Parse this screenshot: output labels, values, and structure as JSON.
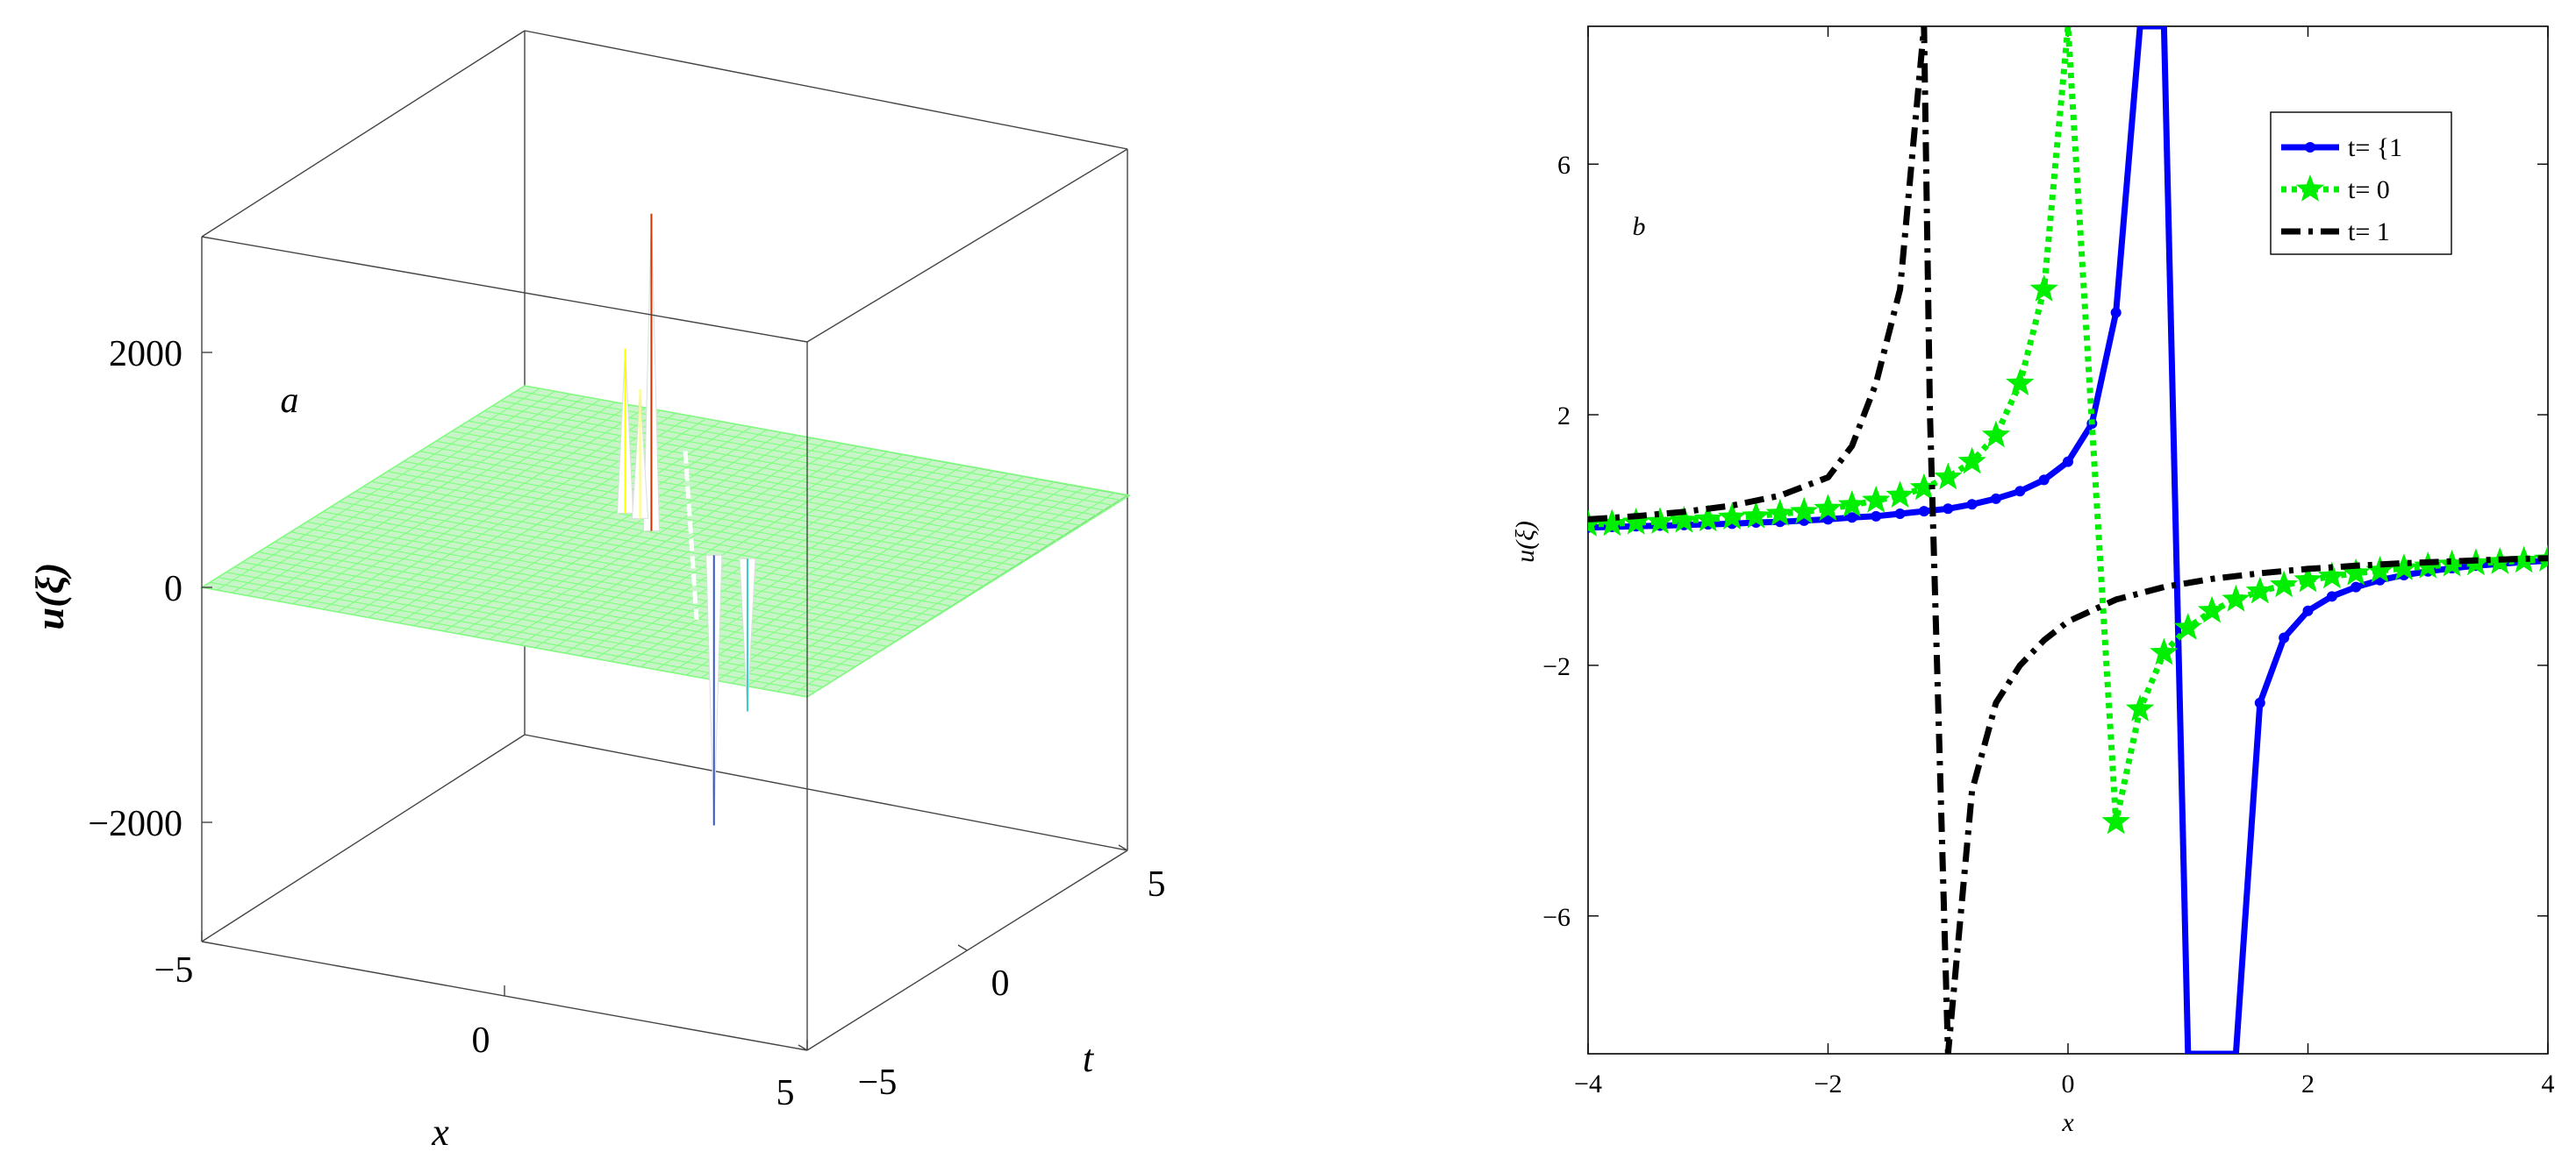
{
  "chart_data": [
    {
      "type": "surface3d",
      "panel_label": "a",
      "xlabel": "x",
      "ylabel": "t",
      "zlabel": "u(ξ)",
      "x_ticks": [
        "−5",
        "0",
        "5"
      ],
      "t_ticks": [
        "−5",
        "0",
        "5"
      ],
      "z_ticks": [
        "−2000",
        "0",
        "2000"
      ],
      "xlim": [
        -5,
        5
      ],
      "tlim": [
        -5,
        5
      ],
      "zlim": [
        -3000,
        3000
      ],
      "surface_level": 0,
      "surface_color": "#80ff80",
      "spikes": [
        {
          "x": -0.4,
          "t": 0.3,
          "z": 2700,
          "color": "#cc3300"
        },
        {
          "x": -1.1,
          "t": 0.8,
          "z": 1400,
          "color": "#ffff00"
        },
        {
          "x": -0.8,
          "t": 0.7,
          "z": 1100,
          "color": "#ffff66"
        },
        {
          "x": 0.9,
          "t": -0.2,
          "z": -2300,
          "color": "#3355cc"
        },
        {
          "x": 1.4,
          "t": -0.1,
          "z": -1300,
          "color": "#33cccc"
        }
      ]
    },
    {
      "type": "line",
      "panel_label": "b",
      "xlabel": "x",
      "ylabel": "u(ξ)",
      "xlim": [
        -4,
        4
      ],
      "ylim": [
        -8.2,
        8.2
      ],
      "x_ticks": [
        "−4",
        "−2",
        "0",
        "2",
        "4"
      ],
      "y_ticks": [
        "−6",
        "−2",
        "2",
        "6"
      ],
      "legend_position": "top-right",
      "series": [
        {
          "name": "t= {1",
          "color": "#0000ff",
          "style": "solid",
          "marker": "dot",
          "x": [
            -4.0,
            -3.8,
            -3.6,
            -3.4,
            -3.2,
            -3.0,
            -2.8,
            -2.6,
            -2.4,
            -2.2,
            -2.0,
            -1.8,
            -1.6,
            -1.4,
            -1.2,
            -1.0,
            -0.8,
            -0.6,
            -0.4,
            -0.2,
            0.0,
            0.2,
            0.4,
            0.6,
            0.8,
            1.0,
            1.4,
            1.6,
            1.8,
            2.0,
            2.2,
            2.4,
            2.6,
            2.8,
            3.0,
            3.2,
            3.4,
            3.6,
            3.8,
            4.0
          ],
          "y": [
            0.2,
            0.21,
            0.22,
            0.23,
            0.24,
            0.25,
            0.26,
            0.28,
            0.29,
            0.31,
            0.33,
            0.36,
            0.38,
            0.42,
            0.46,
            0.5,
            0.57,
            0.66,
            0.78,
            0.96,
            1.25,
            1.86,
            3.63,
            8.2,
            8.2,
            -8.2,
            -8.2,
            -2.6,
            -1.56,
            -1.13,
            -0.9,
            -0.75,
            -0.64,
            -0.56,
            -0.5,
            -0.45,
            -0.41,
            -0.38,
            -0.35,
            -0.33
          ]
        },
        {
          "name": "t= 0",
          "color": "#00ee00",
          "style": "dotted",
          "marker": "star",
          "x": [
            -4.0,
            -3.8,
            -3.6,
            -3.4,
            -3.2,
            -3.0,
            -2.8,
            -2.6,
            -2.4,
            -2.2,
            -2.0,
            -1.8,
            -1.6,
            -1.4,
            -1.2,
            -1.0,
            -0.8,
            -0.6,
            -0.4,
            -0.2,
            0.0,
            0.4,
            0.6,
            0.8,
            1.0,
            1.2,
            1.4,
            1.6,
            1.8,
            2.0,
            2.2,
            2.4,
            2.6,
            2.8,
            3.0,
            3.2,
            3.4,
            3.6,
            3.8,
            4.0
          ],
          "y": [
            0.25,
            0.26,
            0.28,
            0.29,
            0.31,
            0.33,
            0.36,
            0.38,
            0.42,
            0.45,
            0.5,
            0.56,
            0.63,
            0.71,
            0.83,
            1.0,
            1.25,
            1.67,
            2.5,
            4.0,
            8.2,
            -4.5,
            -2.7,
            -1.8,
            -1.4,
            -1.13,
            -0.95,
            -0.82,
            -0.72,
            -0.64,
            -0.58,
            -0.53,
            -0.49,
            -0.45,
            -0.42,
            -0.39,
            -0.37,
            -0.35,
            -0.33,
            -0.31
          ]
        },
        {
          "name": "t= 1",
          "color": "#000000",
          "style": "dashdot",
          "marker": "none",
          "x": [
            -4.0,
            -3.6,
            -3.2,
            -2.8,
            -2.4,
            -2.0,
            -1.8,
            -1.6,
            -1.4,
            -1.2,
            -1.15,
            -1.0,
            -0.8,
            -0.6,
            -0.4,
            -0.2,
            0.0,
            0.4,
            0.8,
            1.2,
            1.6,
            2.0,
            2.4,
            2.8,
            3.2,
            3.6,
            4.0
          ],
          "y": [
            0.33,
            0.38,
            0.45,
            0.55,
            0.71,
            1.0,
            1.5,
            2.5,
            4.0,
            8.2,
            2.0,
            -8.2,
            -4.0,
            -2.6,
            -2.0,
            -1.6,
            -1.3,
            -0.95,
            -0.75,
            -0.62,
            -0.53,
            -0.46,
            -0.41,
            -0.37,
            -0.34,
            -0.31,
            -0.29
          ]
        }
      ]
    }
  ]
}
